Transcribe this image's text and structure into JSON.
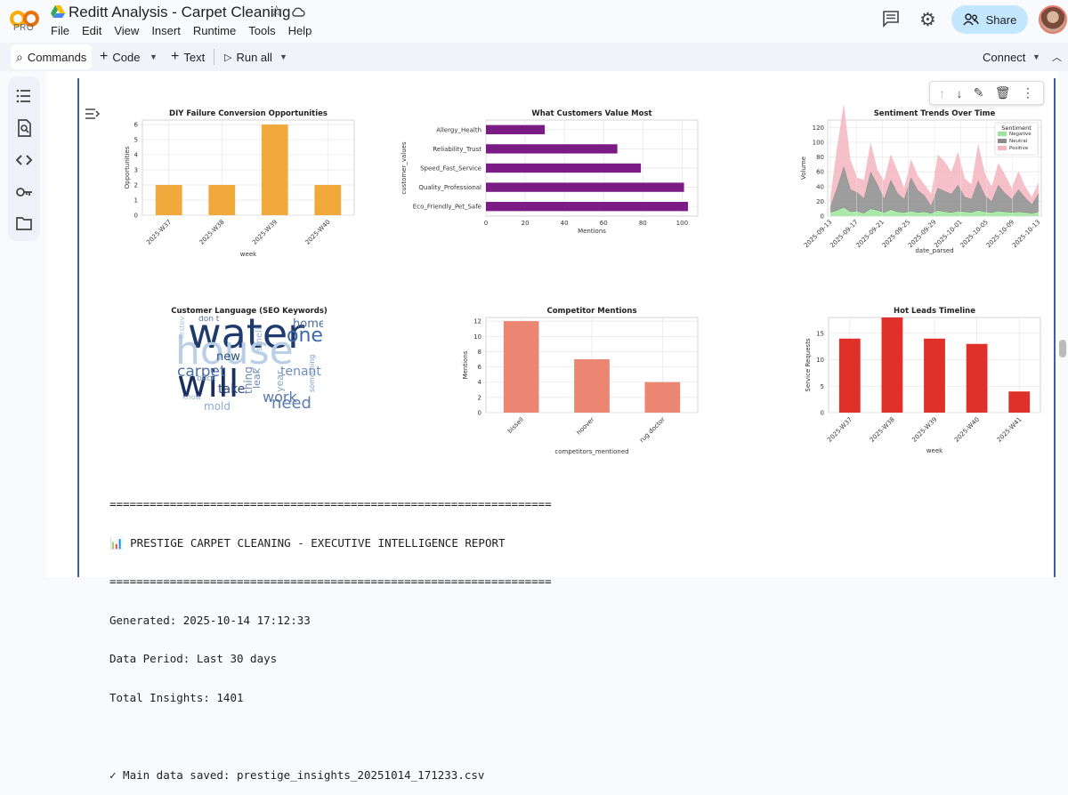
{
  "app": {
    "logo_label": "PRO",
    "title": "Reditt Analysis - Carpet Cleaning",
    "menu": [
      "File",
      "Edit",
      "View",
      "Insert",
      "Runtime",
      "Tools",
      "Help"
    ],
    "share_label": "Share",
    "colors": {
      "share_bg": "#c2e7ff",
      "cell_accent": "#3b5bb8",
      "logo_orange": "#f9ab00"
    }
  },
  "toolbar": {
    "commands_label": "Commands",
    "code_label": "Code",
    "text_label": "Text",
    "run_all_label": "Run all",
    "connect_label": "Connect"
  },
  "sidebar": {
    "icons": [
      "table-of-contents-icon",
      "find-replace-icon",
      "code-snippets-icon",
      "secrets-key-icon",
      "files-folder-icon"
    ]
  },
  "cell_toolbar": {
    "icons": [
      "move-up-icon",
      "move-down-icon",
      "edit-icon",
      "delete-icon",
      "more-icon"
    ]
  },
  "charts": {
    "diy": {
      "type": "bar",
      "title": "DIY Failure Conversion Opportunities",
      "xlabel": "week",
      "ylabel": "Opportunities",
      "categories": [
        "2025-W37",
        "2025-W38",
        "2025-W39",
        "2025-W40"
      ],
      "values": [
        2,
        2,
        6,
        2
      ],
      "yticks": [
        0,
        1,
        2,
        3,
        4,
        5,
        6
      ],
      "color": "#f2a93b"
    },
    "values": {
      "type": "barh",
      "title": "What Customers Value Most",
      "xlabel": "Mentions",
      "ylabel": "customer_values",
      "categories": [
        "Allergy_Health",
        "Reliability_Trust",
        "Speed_Fast_Service",
        "Quality_Professional",
        "Eco_Friendly_Pet_Safe"
      ],
      "values": [
        30,
        67,
        79,
        101,
        103
      ],
      "xticks": [
        0,
        20,
        40,
        60,
        80,
        100
      ],
      "color": "#7a1b86"
    },
    "sentiment": {
      "type": "area",
      "title": "Sentiment Trends Over Time",
      "xlabel": "date_parsed",
      "ylabel": "Volume",
      "yticks": [
        0,
        20,
        40,
        60,
        80,
        100,
        120
      ],
      "xtick_labels": [
        "2025-09-13",
        "2025-09-17",
        "2025-09-21",
        "2025-09-25",
        "2025-09-29",
        "2025-10-01",
        "2025-10-05",
        "2025-10-09",
        "2025-10-13"
      ],
      "legend_title": "Sentiment",
      "legend_position": "top-right",
      "series": [
        {
          "name": "Negative",
          "color": "#9be59b",
          "values": [
            5,
            8,
            12,
            6,
            7,
            4,
            10,
            8,
            5,
            9,
            6,
            5,
            7,
            5,
            6,
            4,
            8,
            6,
            5,
            7,
            6,
            5,
            8,
            6,
            5,
            7,
            6,
            5,
            6,
            5,
            4,
            6
          ]
        },
        {
          "name": "Neutral",
          "color": "#8c8c8c",
          "values": [
            8,
            30,
            55,
            30,
            25,
            20,
            50,
            35,
            18,
            40,
            25,
            18,
            45,
            30,
            22,
            10,
            30,
            28,
            25,
            35,
            20,
            18,
            40,
            22,
            15,
            35,
            25,
            18,
            30,
            20,
            12,
            25
          ]
        },
        {
          "name": "Positive",
          "color": "#f5b5c0",
          "values": [
            12,
            55,
            85,
            40,
            20,
            25,
            40,
            20,
            25,
            35,
            30,
            15,
            25,
            20,
            15,
            16,
            45,
            40,
            30,
            45,
            25,
            20,
            50,
            30,
            20,
            30,
            25,
            15,
            25,
            15,
            10,
            15
          ]
        }
      ]
    },
    "wordcloud": {
      "title": "Customer Language (SEO Keywords)",
      "words": [
        {
          "text": "water",
          "color": "#1f3b6e"
        },
        {
          "text": "house",
          "color": "#b9cfe6"
        },
        {
          "text": "will",
          "color": "#1a2f5e"
        },
        {
          "text": "need",
          "color": "#5d7fb0"
        },
        {
          "text": "one",
          "color": "#3c6aa8"
        },
        {
          "text": "home",
          "color": "#4d6e9e"
        },
        {
          "text": "carpet",
          "color": "#4a6fa5"
        },
        {
          "text": "take",
          "color": "#27467a"
        },
        {
          "text": "new",
          "color": "#2b4d82"
        },
        {
          "text": "tenant",
          "color": "#6f8fbd"
        },
        {
          "text": "year",
          "color": "#8aa6cc"
        },
        {
          "text": "leak",
          "color": "#6b87b3"
        },
        {
          "text": "back",
          "color": "#7e98c2"
        },
        {
          "text": "work",
          "color": "#5779ab"
        },
        {
          "text": "mold",
          "color": "#8fa9d0"
        },
        {
          "text": "know",
          "color": "#9bb2d4"
        },
        {
          "text": "thing",
          "color": "#6a86b2"
        },
        {
          "text": "something",
          "color": "#7f9ac3"
        },
        {
          "text": "don t",
          "color": "#5876a8"
        },
        {
          "text": "firstever",
          "color": "#a7bedc"
        },
        {
          "text": "smell",
          "color": "#9db4d6"
        }
      ]
    },
    "competitors": {
      "type": "bar",
      "title": "Competitor Mentions",
      "xlabel": "competitors_mentioned",
      "ylabel": "Mentions",
      "categories": [
        "bissell",
        "hoover",
        "rug doctor"
      ],
      "values": [
        12,
        7,
        4
      ],
      "yticks": [
        0,
        2,
        4,
        6,
        8,
        10,
        12
      ],
      "color": "#eb8673"
    },
    "leads": {
      "type": "bar",
      "title": "Hot Leads Timeline",
      "xlabel": "week",
      "ylabel": "Service Requests",
      "categories": [
        "2025-W37",
        "2025-W38",
        "2025-W39",
        "2025-W40",
        "2025-W41"
      ],
      "values": [
        14,
        18,
        14,
        13,
        4
      ],
      "yticks": [
        0,
        5,
        10,
        15
      ],
      "color": "#e0302a"
    }
  },
  "report": {
    "rule": "==================================================================",
    "heading": "📊 PRESTIGE CARPET CLEANING - EXECUTIVE INTELLIGENCE REPORT",
    "generated": "Generated: 2025-10-14 17:12:33",
    "period": "Data Period: Last 30 days",
    "insights": "Total Insights: 1401",
    "saved": "✓ Main data saved: prestige_insights_20251014_171233.csv"
  }
}
